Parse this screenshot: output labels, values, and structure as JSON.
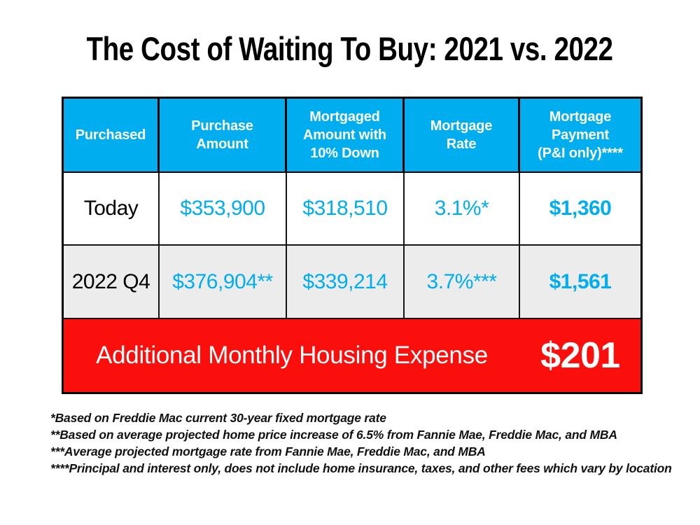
{
  "title": "The Cost of Waiting To Buy: 2021 vs. 2022",
  "table": {
    "columns": [
      "Purchased",
      "Purchase\nAmount",
      "Mortgaged\nAmount with\n10% Down",
      "Mortgage\nRate",
      "Mortgage\nPayment\n(P&I only)****"
    ],
    "rows": [
      {
        "label": "Today",
        "values": [
          "$353,900",
          "$318,510",
          "3.1%*",
          "$1,360"
        ]
      },
      {
        "label": "2022 Q4",
        "values": [
          "$376,904**",
          "$339,214",
          "3.7%***",
          "$1,561"
        ]
      }
    ],
    "summary": {
      "label": "Additional Monthly Housing Expense",
      "value": "$201"
    }
  },
  "footnotes": [
    "*Based on Freddie Mac current 30-year fixed mortgage rate",
    "**Based on average projected home price increase of 6.5% from Fannie Mae, Freddie Mac, and MBA",
    "***Average projected mortgage rate from Fannie Mae, Freddie Mac, and MBA",
    "****Principal and interest only, does not include home insurance, taxes, and other fees which vary by location"
  ],
  "colors": {
    "header_blue": "#00AEEF",
    "value_blue": "#00AEEF",
    "summary_red": "#FB0F0C",
    "row_alt_gray": "#ECECEC",
    "table_border": "#000000",
    "title_black": "#000000",
    "footnote_black": "#111111"
  },
  "chart_data": {
    "type": "table",
    "title": "The Cost of Waiting To Buy: 2021 vs. 2022",
    "columns": [
      "Purchased",
      "Purchase Amount",
      "Mortgaged Amount with 10% Down",
      "Mortgage Rate",
      "Mortgage Payment (P&I only)****"
    ],
    "rows": [
      [
        "Today",
        "$353,900",
        "$318,510",
        "3.1%*",
        "$1,360"
      ],
      [
        "2022 Q4",
        "$376,904**",
        "$339,214",
        "3.7%***",
        "$1,561"
      ],
      [
        "Additional Monthly Housing Expense",
        "",
        "",
        "",
        "$201"
      ]
    ]
  }
}
